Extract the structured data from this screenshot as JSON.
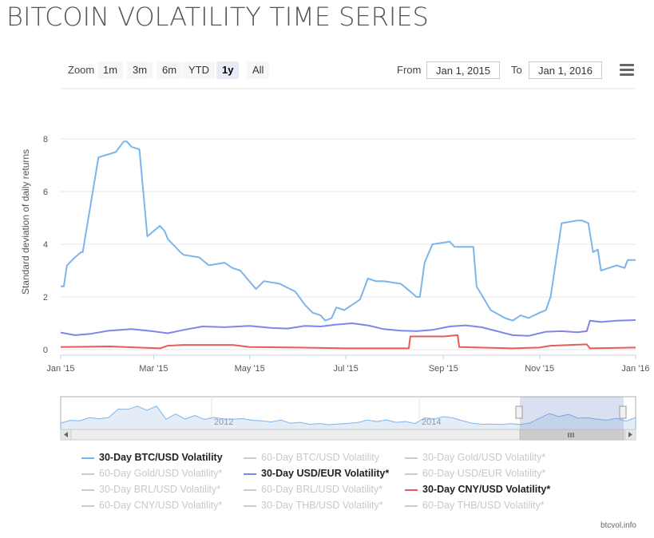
{
  "title": "BITCOIN VOLATILITY TIME SERIES",
  "range_selector": {
    "zoom_label": "Zoom",
    "buttons": [
      "1m",
      "3m",
      "6m",
      "YTD",
      "1y",
      "All"
    ],
    "active": "1y",
    "from_label": "From",
    "from_value": "Jan 1, 2015",
    "to_label": "To",
    "to_value": "Jan 1, 2016"
  },
  "credit": "btcvol.info",
  "colors": {
    "btc": "#7cb5ec",
    "eur": "#8085e9",
    "cny": "#e45c5c",
    "disabled": "#cccccc"
  },
  "chart_data": {
    "type": "line",
    "ylabel": "Standard deviation of daily returns",
    "xlabel": "",
    "ylim": [
      0,
      8
    ],
    "yticks": [
      "0",
      "2",
      "4",
      "6",
      "8"
    ],
    "xticks": [
      "Jan '15",
      "Mar '15",
      "May '15",
      "Jul '15",
      "Sep '15",
      "Nov '15",
      "Jan '16"
    ],
    "grid": true,
    "series": [
      {
        "name": "30-Day BTC/USD Volatility",
        "color": "#7cb5ec",
        "x": [
          "2015-01-01",
          "2015-01-03",
          "2015-01-05",
          "2015-01-10",
          "2015-01-14",
          "2015-01-15",
          "2015-01-25",
          "2015-02-05",
          "2015-02-10",
          "2015-02-12",
          "2015-02-15",
          "2015-02-20",
          "2015-02-25",
          "2015-03-05",
          "2015-03-08",
          "2015-03-10",
          "2015-03-18",
          "2015-03-20",
          "2015-03-30",
          "2015-04-05",
          "2015-04-15",
          "2015-04-20",
          "2015-04-25",
          "2015-05-05",
          "2015-05-10",
          "2015-05-20",
          "2015-05-30",
          "2015-06-05",
          "2015-06-10",
          "2015-06-15",
          "2015-06-18",
          "2015-06-22",
          "2015-06-25",
          "2015-06-30",
          "2015-07-10",
          "2015-07-15",
          "2015-07-20",
          "2015-07-25",
          "2015-08-05",
          "2015-08-15",
          "2015-08-17",
          "2015-08-20",
          "2015-08-25",
          "2015-09-05",
          "2015-09-08",
          "2015-09-20",
          "2015-09-22",
          "2015-10-01",
          "2015-10-10",
          "2015-10-15",
          "2015-10-20",
          "2015-10-25",
          "2015-11-01",
          "2015-11-05",
          "2015-11-08",
          "2015-11-15",
          "2015-11-25",
          "2015-11-28",
          "2015-12-02",
          "2015-12-05",
          "2015-12-08",
          "2015-12-10",
          "2015-12-15",
          "2015-12-20",
          "2015-12-25",
          "2015-12-27",
          "2016-01-01"
        ],
        "values": [
          2.4,
          2.4,
          3.2,
          3.5,
          3.7,
          3.7,
          7.3,
          7.5,
          7.9,
          7.9,
          7.7,
          7.6,
          4.3,
          4.7,
          4.5,
          4.2,
          3.7,
          3.6,
          3.5,
          3.2,
          3.3,
          3.1,
          3.0,
          2.3,
          2.6,
          2.5,
          2.2,
          1.7,
          1.4,
          1.3,
          1.1,
          1.2,
          1.6,
          1.5,
          1.9,
          2.7,
          2.6,
          2.6,
          2.5,
          2.0,
          2.0,
          3.3,
          4.0,
          4.1,
          3.9,
          3.9,
          2.4,
          1.5,
          1.2,
          1.1,
          1.3,
          1.2,
          1.4,
          1.5,
          2.0,
          4.8,
          4.9,
          4.9,
          4.8,
          3.7,
          3.8,
          3.0,
          3.1,
          3.2,
          3.1,
          3.4,
          3.4
        ]
      },
      {
        "name": "30-Day USD/EUR Volatility*",
        "color": "#8085e9",
        "x": [
          "2015-01-01",
          "2015-01-10",
          "2015-01-20",
          "2015-02-01",
          "2015-02-15",
          "2015-02-28",
          "2015-03-10",
          "2015-03-20",
          "2015-04-01",
          "2015-04-15",
          "2015-05-01",
          "2015-05-15",
          "2015-05-25",
          "2015-06-05",
          "2015-06-15",
          "2015-06-25",
          "2015-07-05",
          "2015-07-15",
          "2015-07-25",
          "2015-08-05",
          "2015-08-15",
          "2015-08-25",
          "2015-09-05",
          "2015-09-15",
          "2015-09-25",
          "2015-10-05",
          "2015-10-15",
          "2015-10-25",
          "2015-11-05",
          "2015-11-15",
          "2015-11-25",
          "2015-12-01",
          "2015-12-03",
          "2015-12-10",
          "2015-12-20",
          "2016-01-01"
        ],
        "values": [
          0.65,
          0.55,
          0.6,
          0.72,
          0.78,
          0.7,
          0.62,
          0.75,
          0.88,
          0.85,
          0.9,
          0.82,
          0.8,
          0.9,
          0.88,
          0.95,
          1.0,
          0.92,
          0.78,
          0.72,
          0.7,
          0.75,
          0.88,
          0.92,
          0.85,
          0.7,
          0.55,
          0.52,
          0.68,
          0.7,
          0.66,
          0.7,
          1.1,
          1.05,
          1.1,
          1.12
        ]
      },
      {
        "name": "30-Day CNY/USD Volatility*",
        "color": "#e45c5c",
        "x": [
          "2015-01-01",
          "2015-02-01",
          "2015-03-05",
          "2015-03-10",
          "2015-03-20",
          "2015-04-20",
          "2015-05-01",
          "2015-06-01",
          "2015-07-01",
          "2015-08-10",
          "2015-08-11",
          "2015-09-01",
          "2015-09-10",
          "2015-09-11",
          "2015-10-15",
          "2015-11-01",
          "2015-11-08",
          "2015-12-01",
          "2015-12-03",
          "2016-01-01"
        ],
        "values": [
          0.1,
          0.12,
          0.05,
          0.15,
          0.18,
          0.18,
          0.1,
          0.08,
          0.05,
          0.05,
          0.5,
          0.5,
          0.55,
          0.1,
          0.05,
          0.08,
          0.15,
          0.2,
          0.05,
          0.08
        ]
      }
    ],
    "navigator": {
      "xticks": [
        "2012",
        "2014"
      ],
      "selected_range": [
        "2015-01-01",
        "2016-01-01"
      ]
    }
  },
  "legend": [
    {
      "label": "30-Day BTC/USD Volatility",
      "enabled": true,
      "color": "#7cb5ec"
    },
    {
      "label": "60-Day BTC/USD Volatility",
      "enabled": false
    },
    {
      "label": "30-Day Gold/USD Volatility*",
      "enabled": false
    },
    {
      "label": "60-Day Gold/USD Volatility*",
      "enabled": false
    },
    {
      "label": "30-Day USD/EUR Volatility*",
      "enabled": true,
      "color": "#8085e9"
    },
    {
      "label": "60-Day USD/EUR Volatility*",
      "enabled": false
    },
    {
      "label": "30-Day BRL/USD Volatility*",
      "enabled": false
    },
    {
      "label": "60-Day BRL/USD Volatility*",
      "enabled": false
    },
    {
      "label": "30-Day CNY/USD Volatility*",
      "enabled": true,
      "color": "#e45c5c"
    },
    {
      "label": "60-Day CNY/USD Volatility*",
      "enabled": false
    },
    {
      "label": "30-Day THB/USD Volatility*",
      "enabled": false
    },
    {
      "label": "60-Day THB/USD Volatility*",
      "enabled": false
    }
  ]
}
